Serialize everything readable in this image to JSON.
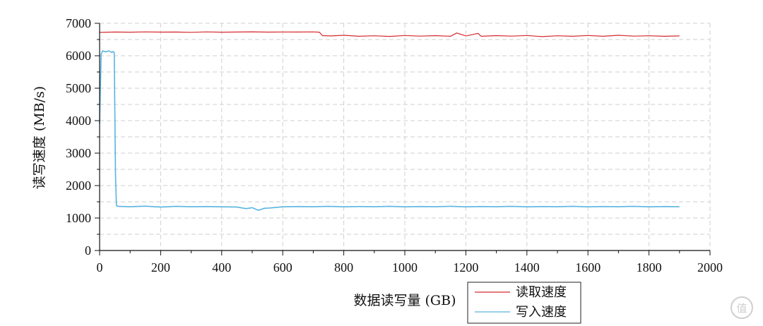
{
  "chart_data": {
    "type": "line",
    "xlabel": "数据读写量 (GB)",
    "ylabel": "读写速度 (MB/s)",
    "xlim": [
      0,
      2000
    ],
    "ylim": [
      0,
      7000
    ],
    "xticks": [
      0,
      200,
      400,
      600,
      800,
      1000,
      1200,
      1400,
      1600,
      1800,
      2000
    ],
    "yticks": [
      0,
      1000,
      2000,
      3000,
      4000,
      5000,
      6000,
      7000
    ],
    "grid": "dashed",
    "legend": "bottom-center",
    "series": [
      {
        "name": "读取速度",
        "color": "#d62a2f",
        "x": [
          0,
          50,
          100,
          150,
          200,
          250,
          300,
          350,
          400,
          450,
          500,
          550,
          600,
          650,
          700,
          720,
          730,
          760,
          800,
          850,
          900,
          950,
          1000,
          1050,
          1100,
          1150,
          1170,
          1200,
          1240,
          1250,
          1300,
          1350,
          1400,
          1450,
          1500,
          1550,
          1600,
          1650,
          1700,
          1750,
          1800,
          1850,
          1900
        ],
        "y": [
          6720,
          6730,
          6725,
          6735,
          6728,
          6730,
          6722,
          6734,
          6726,
          6730,
          6736,
          6728,
          6732,
          6730,
          6735,
          6725,
          6620,
          6610,
          6630,
          6600,
          6615,
          6595,
          6625,
          6605,
          6620,
          6600,
          6700,
          6610,
          6690,
          6600,
          6620,
          6605,
          6625,
          6590,
          6615,
          6600,
          6625,
          6600,
          6630,
          6605,
          6615,
          6600,
          6610
        ]
      },
      {
        "name": "写入速度",
        "color": "#5ab4e0",
        "x": [
          0,
          5,
          10,
          20,
          30,
          40,
          44,
          48,
          52,
          55,
          60,
          100,
          150,
          200,
          250,
          300,
          350,
          400,
          450,
          480,
          500,
          520,
          540,
          560,
          600,
          650,
          700,
          750,
          800,
          850,
          900,
          950,
          1000,
          1050,
          1100,
          1150,
          1200,
          1250,
          1300,
          1350,
          1400,
          1450,
          1500,
          1550,
          1600,
          1650,
          1700,
          1750,
          1800,
          1850,
          1900
        ],
        "y": [
          3900,
          6050,
          6150,
          6120,
          6150,
          6100,
          6130,
          6100,
          2300,
          1380,
          1360,
          1350,
          1365,
          1340,
          1360,
          1350,
          1355,
          1345,
          1340,
          1290,
          1320,
          1240,
          1300,
          1310,
          1345,
          1355,
          1350,
          1360,
          1345,
          1355,
          1350,
          1360,
          1345,
          1355,
          1350,
          1360,
          1345,
          1355,
          1350,
          1360,
          1345,
          1355,
          1350,
          1360,
          1345,
          1355,
          1350,
          1360,
          1345,
          1355,
          1350
        ]
      }
    ]
  }
}
